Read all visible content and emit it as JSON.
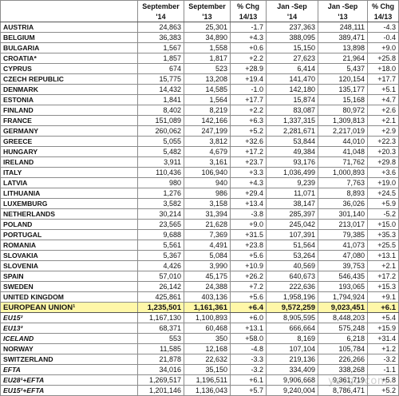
{
  "header": {
    "row1": [
      "",
      "September",
      "September",
      "% Chg",
      "Jan -Sep",
      "Jan -Sep",
      "% Chg"
    ],
    "row2": [
      "",
      "'14",
      "'13",
      "14/13",
      "'14",
      "'13",
      "14/13"
    ]
  },
  "rows": [
    {
      "name": "AUSTRIA",
      "sep14": "24,863",
      "sep13": "25,301",
      "chg": "-1.7",
      "ytd14": "237,363",
      "ytd13": "248,111",
      "ytdchg": "-4.3"
    },
    {
      "name": "BELGIUM",
      "sep14": "36,383",
      "sep13": "34,890",
      "chg": "+4.3",
      "ytd14": "388,095",
      "ytd13": "389,471",
      "ytdchg": "-0.4"
    },
    {
      "name": "BULGARIA",
      "sep14": "1,567",
      "sep13": "1,558",
      "chg": "+0.6",
      "ytd14": "15,150",
      "ytd13": "13,898",
      "ytdchg": "+9.0"
    },
    {
      "name": "CROATIA*",
      "sep14": "1,857",
      "sep13": "1,817",
      "chg": "+2.2",
      "ytd14": "27,623",
      "ytd13": "21,964",
      "ytdchg": "+25.8"
    },
    {
      "name": "CYPRUS",
      "sep14": "674",
      "sep13": "523",
      "chg": "+28.9",
      "ytd14": "6,414",
      "ytd13": "5,437",
      "ytdchg": "+18.0"
    },
    {
      "name": "CZECH REPUBLIC",
      "sep14": "15,775",
      "sep13": "13,208",
      "chg": "+19.4",
      "ytd14": "141,470",
      "ytd13": "120,154",
      "ytdchg": "+17.7"
    },
    {
      "name": "DENMARK",
      "sep14": "14,432",
      "sep13": "14,585",
      "chg": "-1.0",
      "ytd14": "142,180",
      "ytd13": "135,177",
      "ytdchg": "+5.1"
    },
    {
      "name": "ESTONIA",
      "sep14": "1,841",
      "sep13": "1,564",
      "chg": "+17.7",
      "ytd14": "15,874",
      "ytd13": "15,168",
      "ytdchg": "+4.7"
    },
    {
      "name": "FINLAND",
      "sep14": "8,402",
      "sep13": "8,219",
      "chg": "+2.2",
      "ytd14": "83,087",
      "ytd13": "80,972",
      "ytdchg": "+2.6"
    },
    {
      "name": "FRANCE",
      "sep14": "151,089",
      "sep13": "142,166",
      "chg": "+6.3",
      "ytd14": "1,337,315",
      "ytd13": "1,309,813",
      "ytdchg": "+2.1"
    },
    {
      "name": "GERMANY",
      "sep14": "260,062",
      "sep13": "247,199",
      "chg": "+5.2",
      "ytd14": "2,281,671",
      "ytd13": "2,217,019",
      "ytdchg": "+2.9"
    },
    {
      "name": "GREECE",
      "sep14": "5,055",
      "sep13": "3,812",
      "chg": "+32.6",
      "ytd14": "53,844",
      "ytd13": "44,010",
      "ytdchg": "+22.3"
    },
    {
      "name": "HUNGARY",
      "sep14": "5,482",
      "sep13": "4,679",
      "chg": "+17.2",
      "ytd14": "49,384",
      "ytd13": "41,048",
      "ytdchg": "+20.3"
    },
    {
      "name": "IRELAND",
      "sep14": "3,911",
      "sep13": "3,161",
      "chg": "+23.7",
      "ytd14": "93,176",
      "ytd13": "71,762",
      "ytdchg": "+29.8"
    },
    {
      "name": "ITALY",
      "sep14": "110,436",
      "sep13": "106,940",
      "chg": "+3.3",
      "ytd14": "1,036,499",
      "ytd13": "1,000,893",
      "ytdchg": "+3.6"
    },
    {
      "name": "LATVIA",
      "sep14": "980",
      "sep13": "940",
      "chg": "+4.3",
      "ytd14": "9,239",
      "ytd13": "7,763",
      "ytdchg": "+19.0"
    },
    {
      "name": "LITHUANIA",
      "sep14": "1,276",
      "sep13": "986",
      "chg": "+29.4",
      "ytd14": "11,071",
      "ytd13": "8,893",
      "ytdchg": "+24.5"
    },
    {
      "name": "LUXEMBURG",
      "sep14": "3,582",
      "sep13": "3,158",
      "chg": "+13.4",
      "ytd14": "38,147",
      "ytd13": "36,026",
      "ytdchg": "+5.9"
    },
    {
      "name": "NETHERLANDS",
      "sep14": "30,214",
      "sep13": "31,394",
      "chg": "-3.8",
      "ytd14": "285,397",
      "ytd13": "301,140",
      "ytdchg": "-5.2"
    },
    {
      "name": "POLAND",
      "sep14": "23,565",
      "sep13": "21,628",
      "chg": "+9.0",
      "ytd14": "245,042",
      "ytd13": "213,017",
      "ytdchg": "+15.0"
    },
    {
      "name": "PORTUGAL",
      "sep14": "9,688",
      "sep13": "7,369",
      "chg": "+31.5",
      "ytd14": "107,391",
      "ytd13": "79,385",
      "ytdchg": "+35.3"
    },
    {
      "name": "ROMANIA",
      "sep14": "5,561",
      "sep13": "4,491",
      "chg": "+23.8",
      "ytd14": "51,564",
      "ytd13": "41,073",
      "ytdchg": "+25.5"
    },
    {
      "name": "SLOVAKIA",
      "sep14": "5,367",
      "sep13": "5,084",
      "chg": "+5.6",
      "ytd14": "53,264",
      "ytd13": "47,080",
      "ytdchg": "+13.1"
    },
    {
      "name": "SLOVENIA",
      "sep14": "4,426",
      "sep13": "3,990",
      "chg": "+10.9",
      "ytd14": "40,569",
      "ytd13": "39,753",
      "ytdchg": "+2.1"
    },
    {
      "name": "SPAIN",
      "sep14": "57,010",
      "sep13": "45,175",
      "chg": "+26.2",
      "ytd14": "640,673",
      "ytd13": "546,435",
      "ytdchg": "+17.2"
    },
    {
      "name": "SWEDEN",
      "sep14": "26,142",
      "sep13": "24,388",
      "chg": "+7.2",
      "ytd14": "222,636",
      "ytd13": "193,065",
      "ytdchg": "+15.3"
    },
    {
      "name": "UNITED KINGDOM",
      "sep14": "425,861",
      "sep13": "403,136",
      "chg": "+5.6",
      "ytd14": "1,958,196",
      "ytd13": "1,794,924",
      "ytdchg": "+9.1"
    },
    {
      "name": "EUROPEAN UNION¹",
      "sep14": "1,235,501",
      "sep13": "1,161,361",
      "chg": "+6.4",
      "ytd14": "9,572,259",
      "ytd13": "9,023,451",
      "ytdchg": "+6.1",
      "kind": "highlight"
    },
    {
      "name": "EU15²",
      "sep14": "1,167,130",
      "sep13": "1,100,893",
      "chg": "+6.0",
      "ytd14": "8,905,595",
      "ytd13": "8,448,203",
      "ytdchg": "+5.4",
      "kind": "group"
    },
    {
      "name": "EU13³",
      "sep14": "68,371",
      "sep13": "60,468",
      "chg": "+13.1",
      "ytd14": "666,664",
      "ytd13": "575,248",
      "ytdchg": "+15.9",
      "kind": "group"
    },
    {
      "name": "ICELAND",
      "sep14": "553",
      "sep13": "350",
      "chg": "+58.0",
      "ytd14": "8,169",
      "ytd13": "6,218",
      "ytdchg": "+31.4",
      "kind": "group"
    },
    {
      "name": "NORWAY",
      "sep14": "11,585",
      "sep13": "12,168",
      "chg": "-4.8",
      "ytd14": "107,104",
      "ytd13": "105,784",
      "ytdchg": "+1.2"
    },
    {
      "name": "SWITZERLAND",
      "sep14": "21,878",
      "sep13": "22,632",
      "chg": "-3.3",
      "ytd14": "219,136",
      "ytd13": "226,266",
      "ytdchg": "-3.2"
    },
    {
      "name": "EFTA",
      "sep14": "34,016",
      "sep13": "35,150",
      "chg": "-3.2",
      "ytd14": "334,409",
      "ytd13": "338,268",
      "ytdchg": "-1.1",
      "kind": "group"
    },
    {
      "name": "EU28¹+EFTA",
      "sep14": "1,269,517",
      "sep13": "1,196,511",
      "chg": "+6.1",
      "ytd14": "9,906,668",
      "ytd13": "9,361,719",
      "ytdchg": "+5.8",
      "kind": "group"
    },
    {
      "name": "EU15²+EFTA",
      "sep14": "1,201,146",
      "sep13": "1,136,043",
      "chg": "+5.7",
      "ytd14": "9,240,004",
      "ytd13": "8,786,471",
      "ytdchg": "+5.2",
      "kind": "group"
    }
  ],
  "watermark": "yesgo.com"
}
